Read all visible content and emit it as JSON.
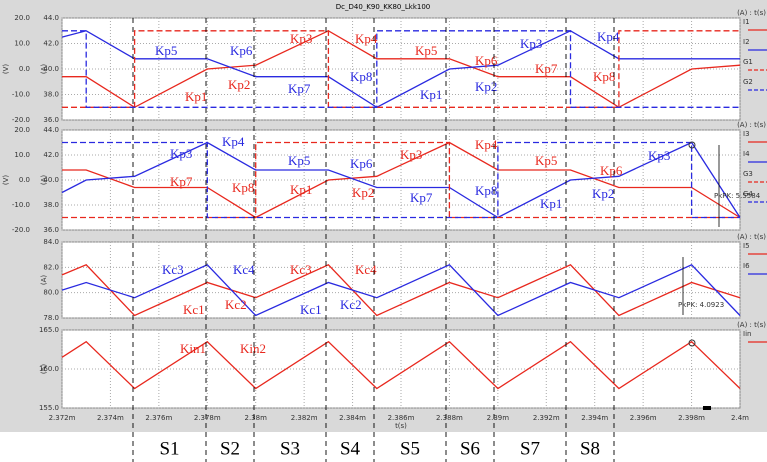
{
  "title": "Dc_D40_K90_KK80_Lkk100",
  "sections": [
    "S1",
    "S2",
    "S3",
    "S4",
    "S5",
    "S6",
    "S7",
    "S8"
  ],
  "chart_data": [
    {
      "type": "line",
      "ylabel": "(A)",
      "y2label": "(V)",
      "legend_title": "(A) : t(s)",
      "grid": true,
      "ylim": [
        36,
        44
      ],
      "yticks": [
        {
          "value": 36,
          "label": "36.0"
        },
        {
          "value": 38,
          "label": "38.0"
        },
        {
          "value": 40,
          "label": "40.0"
        },
        {
          "value": 42,
          "label": "42.0"
        },
        {
          "value": 44,
          "label": "44.0"
        }
      ],
      "y2lim": [
        -20,
        20
      ],
      "y2ticks": [
        {
          "value": -20,
          "label": "-20.0"
        },
        {
          "value": -10,
          "label": "-10.0"
        },
        {
          "value": 0,
          "label": "0.0"
        },
        {
          "value": 10,
          "label": "10.0"
        },
        {
          "value": 20,
          "label": "20.0"
        }
      ],
      "series": [
        {
          "name": "I1",
          "color": "#e8281e",
          "x": [
            0.002372,
            0.002373,
            0.002375,
            0.002378,
            0.00238,
            0.002383,
            0.002385,
            0.002388,
            0.00239,
            0.002393,
            0.002395,
            0.002398,
            0.0024
          ],
          "values": [
            39.4,
            39.4,
            37,
            40,
            40.3,
            43,
            40.8,
            40.8,
            39.4,
            39.4,
            37,
            40,
            40.3
          ]
        },
        {
          "name": "I2",
          "color": "#2a2ae0",
          "x": [
            0.002372,
            0.002373,
            0.002375,
            0.002378,
            0.00238,
            0.002383,
            0.002385,
            0.002388,
            0.00239,
            0.002393,
            0.002395,
            0.002398,
            0.0024
          ],
          "values": [
            42.5,
            43,
            40.8,
            40.8,
            39.4,
            39.4,
            37,
            40,
            40.3,
            43,
            40.8,
            40.8,
            40.8
          ]
        },
        {
          "name": "G1",
          "color": "#e8281e",
          "dash": true,
          "axis": "y2",
          "x": [
            0.002372,
            0.002375,
            0.002375,
            0.002383,
            0.002383,
            0.002395,
            0.002395,
            0.0024
          ],
          "values": [
            -15,
            -15,
            15,
            15,
            -15,
            -15,
            15,
            15
          ]
        },
        {
          "name": "G2",
          "color": "#2a2ae0",
          "dash": true,
          "axis": "y2",
          "x": [
            0.002372,
            0.002373,
            0.002373,
            0.002385,
            0.002385,
            0.002393,
            0.002393,
            0.0024
          ],
          "values": [
            15,
            15,
            -15,
            -15,
            15,
            15,
            -15,
            -15
          ]
        }
      ],
      "annotations": [
        {
          "text": "Kp5",
          "color": "#2a2ae0"
        },
        {
          "text": "Kp6",
          "color": "#2a2ae0"
        },
        {
          "text": "Kp3",
          "color": "#e8281e"
        },
        {
          "text": "Kp4",
          "color": "#e8281e"
        },
        {
          "text": "Kp5",
          "color": "#e8281e"
        },
        {
          "text": "Kp6",
          "color": "#e8281e"
        },
        {
          "text": "Kp3",
          "color": "#2a2ae0"
        },
        {
          "text": "Kp4",
          "color": "#2a2ae0"
        },
        {
          "text": "Kp1",
          "color": "#e8281e"
        },
        {
          "text": "Kp2",
          "color": "#e8281e"
        },
        {
          "text": "Kp7",
          "color": "#2a2ae0"
        },
        {
          "text": "Kp8",
          "color": "#2a2ae0"
        },
        {
          "text": "Kp1",
          "color": "#2a2ae0"
        },
        {
          "text": "Kp2",
          "color": "#2a2ae0"
        },
        {
          "text": "Kp7",
          "color": "#e8281e"
        },
        {
          "text": "Kp8",
          "color": "#e8281e"
        }
      ]
    },
    {
      "type": "line",
      "ylabel": "(A)",
      "y2label": "(V)",
      "legend_title": "(A) : t(s)",
      "grid": true,
      "ylim": [
        36,
        44
      ],
      "yticks": [
        {
          "value": 36,
          "label": "36.0"
        },
        {
          "value": 38,
          "label": "38.0"
        },
        {
          "value": 40,
          "label": "40.0"
        },
        {
          "value": 42,
          "label": "42.0"
        },
        {
          "value": 44,
          "label": "44.0"
        }
      ],
      "y2lim": [
        -20,
        20
      ],
      "y2ticks": [
        {
          "value": -20,
          "label": "-20.0"
        },
        {
          "value": -10,
          "label": "-10.0"
        },
        {
          "value": 0,
          "label": "0.0"
        },
        {
          "value": 10,
          "label": "10.0"
        },
        {
          "value": 20,
          "label": "20.0"
        }
      ],
      "series": [
        {
          "name": "I3",
          "color": "#e8281e",
          "x": [
            0.002372,
            0.002373,
            0.002375,
            0.002378,
            0.00238,
            0.002383,
            0.002385,
            0.002388,
            0.00239,
            0.002393,
            0.002395,
            0.002398,
            0.0024
          ],
          "values": [
            40.8,
            40.8,
            39.4,
            39.4,
            37,
            40,
            40.3,
            43,
            40.8,
            40.8,
            39.4,
            39.4,
            37
          ]
        },
        {
          "name": "I4",
          "color": "#2a2ae0",
          "x": [
            0.002372,
            0.002373,
            0.002375,
            0.002378,
            0.00238,
            0.002383,
            0.002385,
            0.002388,
            0.00239,
            0.002393,
            0.002395,
            0.002398,
            0.0024
          ],
          "values": [
            39,
            40,
            40.3,
            43,
            40.8,
            40.8,
            39.4,
            39.4,
            37,
            40,
            40.3,
            43,
            37
          ]
        },
        {
          "name": "G3",
          "color": "#e8281e",
          "dash": true,
          "axis": "y2",
          "x": [
            0.002372,
            0.00238,
            0.00238,
            0.002388,
            0.002388,
            0.0024
          ],
          "values": [
            -15,
            -15,
            15,
            15,
            -15,
            -15
          ]
        },
        {
          "name": "G4",
          "color": "#2a2ae0",
          "dash": true,
          "axis": "y2",
          "x": [
            0.002372,
            0.002378,
            0.002378,
            0.00239,
            0.00239,
            0.002398,
            0.002398,
            0.0024
          ],
          "values": [
            15,
            15,
            -15,
            -15,
            15,
            15,
            -15,
            -15
          ]
        }
      ],
      "measure": "PkPK: 5.5584",
      "annotations": [
        {
          "text": "Kp3",
          "color": "#2a2ae0"
        },
        {
          "text": "Kp4",
          "color": "#2a2ae0"
        },
        {
          "text": "Kp5",
          "color": "#2a2ae0"
        },
        {
          "text": "Kp6",
          "color": "#2a2ae0"
        },
        {
          "text": "Kp3",
          "color": "#e8281e"
        },
        {
          "text": "Kp4",
          "color": "#e8281e"
        },
        {
          "text": "Kp5",
          "color": "#e8281e"
        },
        {
          "text": "Kp6",
          "color": "#e8281e"
        },
        {
          "text": "Kp3",
          "color": "#2a2ae0"
        },
        {
          "text": "Kp7",
          "color": "#e8281e"
        },
        {
          "text": "Kp8",
          "color": "#e8281e"
        },
        {
          "text": "Kp1",
          "color": "#e8281e"
        },
        {
          "text": "Kp2",
          "color": "#e8281e"
        },
        {
          "text": "Kp7",
          "color": "#2a2ae0"
        },
        {
          "text": "Kp8",
          "color": "#2a2ae0"
        },
        {
          "text": "Kp1",
          "color": "#2a2ae0"
        },
        {
          "text": "Kp2",
          "color": "#2a2ae0"
        }
      ]
    },
    {
      "type": "line",
      "ylabel": "(A)",
      "legend_title": "(A) : t(s)",
      "grid": true,
      "ylim": [
        78,
        84
      ],
      "yticks": [
        {
          "value": 78,
          "label": "78.0"
        },
        {
          "value": 80,
          "label": "80.0"
        },
        {
          "value": 82,
          "label": "82.0"
        },
        {
          "value": 84,
          "label": "84.0"
        }
      ],
      "series": [
        {
          "name": "I5",
          "color": "#e8281e",
          "x": [
            0.002372,
            0.002373,
            0.002375,
            0.002378,
            0.00238,
            0.002383,
            0.002385,
            0.002388,
            0.00239,
            0.002393,
            0.002395,
            0.002398,
            0.0024
          ],
          "values": [
            81.4,
            82.2,
            78.2,
            80.8,
            79.6,
            82.2,
            78.2,
            80.8,
            79.6,
            82.2,
            78.2,
            80.8,
            79.6
          ]
        },
        {
          "name": "I6",
          "color": "#2a2ae0",
          "x": [
            0.002372,
            0.002373,
            0.002375,
            0.002378,
            0.00238,
            0.002383,
            0.002385,
            0.002388,
            0.00239,
            0.002393,
            0.002395,
            0.002398,
            0.0024
          ],
          "values": [
            80.2,
            80.8,
            79.6,
            82.2,
            78.2,
            80.8,
            79.6,
            82.2,
            78.2,
            80.8,
            79.6,
            82.2,
            78.2
          ]
        }
      ],
      "measure": "PkPK: 4.0923",
      "annotations": [
        {
          "text": "Kc3",
          "color": "#2a2ae0"
        },
        {
          "text": "Kc4",
          "color": "#2a2ae0"
        },
        {
          "text": "Kc3",
          "color": "#e8281e"
        },
        {
          "text": "Kc4",
          "color": "#e8281e"
        },
        {
          "text": "Kc1",
          "color": "#e8281e"
        },
        {
          "text": "Kc2",
          "color": "#e8281e"
        },
        {
          "text": "Kc1",
          "color": "#2a2ae0"
        },
        {
          "text": "Kc2",
          "color": "#2a2ae0"
        }
      ]
    },
    {
      "type": "line",
      "ylabel": "(A)",
      "legend_title": "(A) : t(s)",
      "grid": true,
      "xlabel": "t(s)",
      "ylim": [
        155,
        165
      ],
      "yticks": [
        {
          "value": 155,
          "label": "155.0"
        },
        {
          "value": 160,
          "label": "160.0"
        },
        {
          "value": 165,
          "label": "165.0"
        }
      ],
      "xlim": [
        0.002372,
        0.0024
      ],
      "xticks": [
        {
          "value": 0.002372,
          "label": "2.372m"
        },
        {
          "value": 0.002374,
          "label": "2.374m"
        },
        {
          "value": 0.002376,
          "label": "2.376m"
        },
        {
          "value": 0.002378,
          "label": "2.378m"
        },
        {
          "value": 0.00238,
          "label": "2.38m"
        },
        {
          "value": 0.002382,
          "label": "2.382m"
        },
        {
          "value": 0.002384,
          "label": "2.384m"
        },
        {
          "value": 0.002386,
          "label": "2.386m"
        },
        {
          "value": 0.002388,
          "label": "2.388m"
        },
        {
          "value": 0.00239,
          "label": "2.39m"
        },
        {
          "value": 0.002392,
          "label": "2.392m"
        },
        {
          "value": 0.002394,
          "label": "2.394m"
        },
        {
          "value": 0.002396,
          "label": "2.396m"
        },
        {
          "value": 0.002398,
          "label": "2.398m"
        },
        {
          "value": 0.0024,
          "label": "2.4m"
        }
      ],
      "series": [
        {
          "name": "Iin",
          "color": "#e8281e",
          "x": [
            0.002372,
            0.002373,
            0.002375,
            0.002378,
            0.00238,
            0.002383,
            0.002385,
            0.002388,
            0.00239,
            0.002393,
            0.002395,
            0.002398,
            0.0024
          ],
          "values": [
            161.5,
            163.5,
            157.5,
            163.5,
            157.5,
            163.5,
            157.5,
            163.5,
            157.5,
            163.5,
            157.5,
            163.5,
            157.5
          ]
        }
      ],
      "annotations": [
        {
          "text": "Kin1",
          "color": "#e8281e"
        },
        {
          "text": "Kin2",
          "color": "#e8281e"
        }
      ]
    }
  ]
}
